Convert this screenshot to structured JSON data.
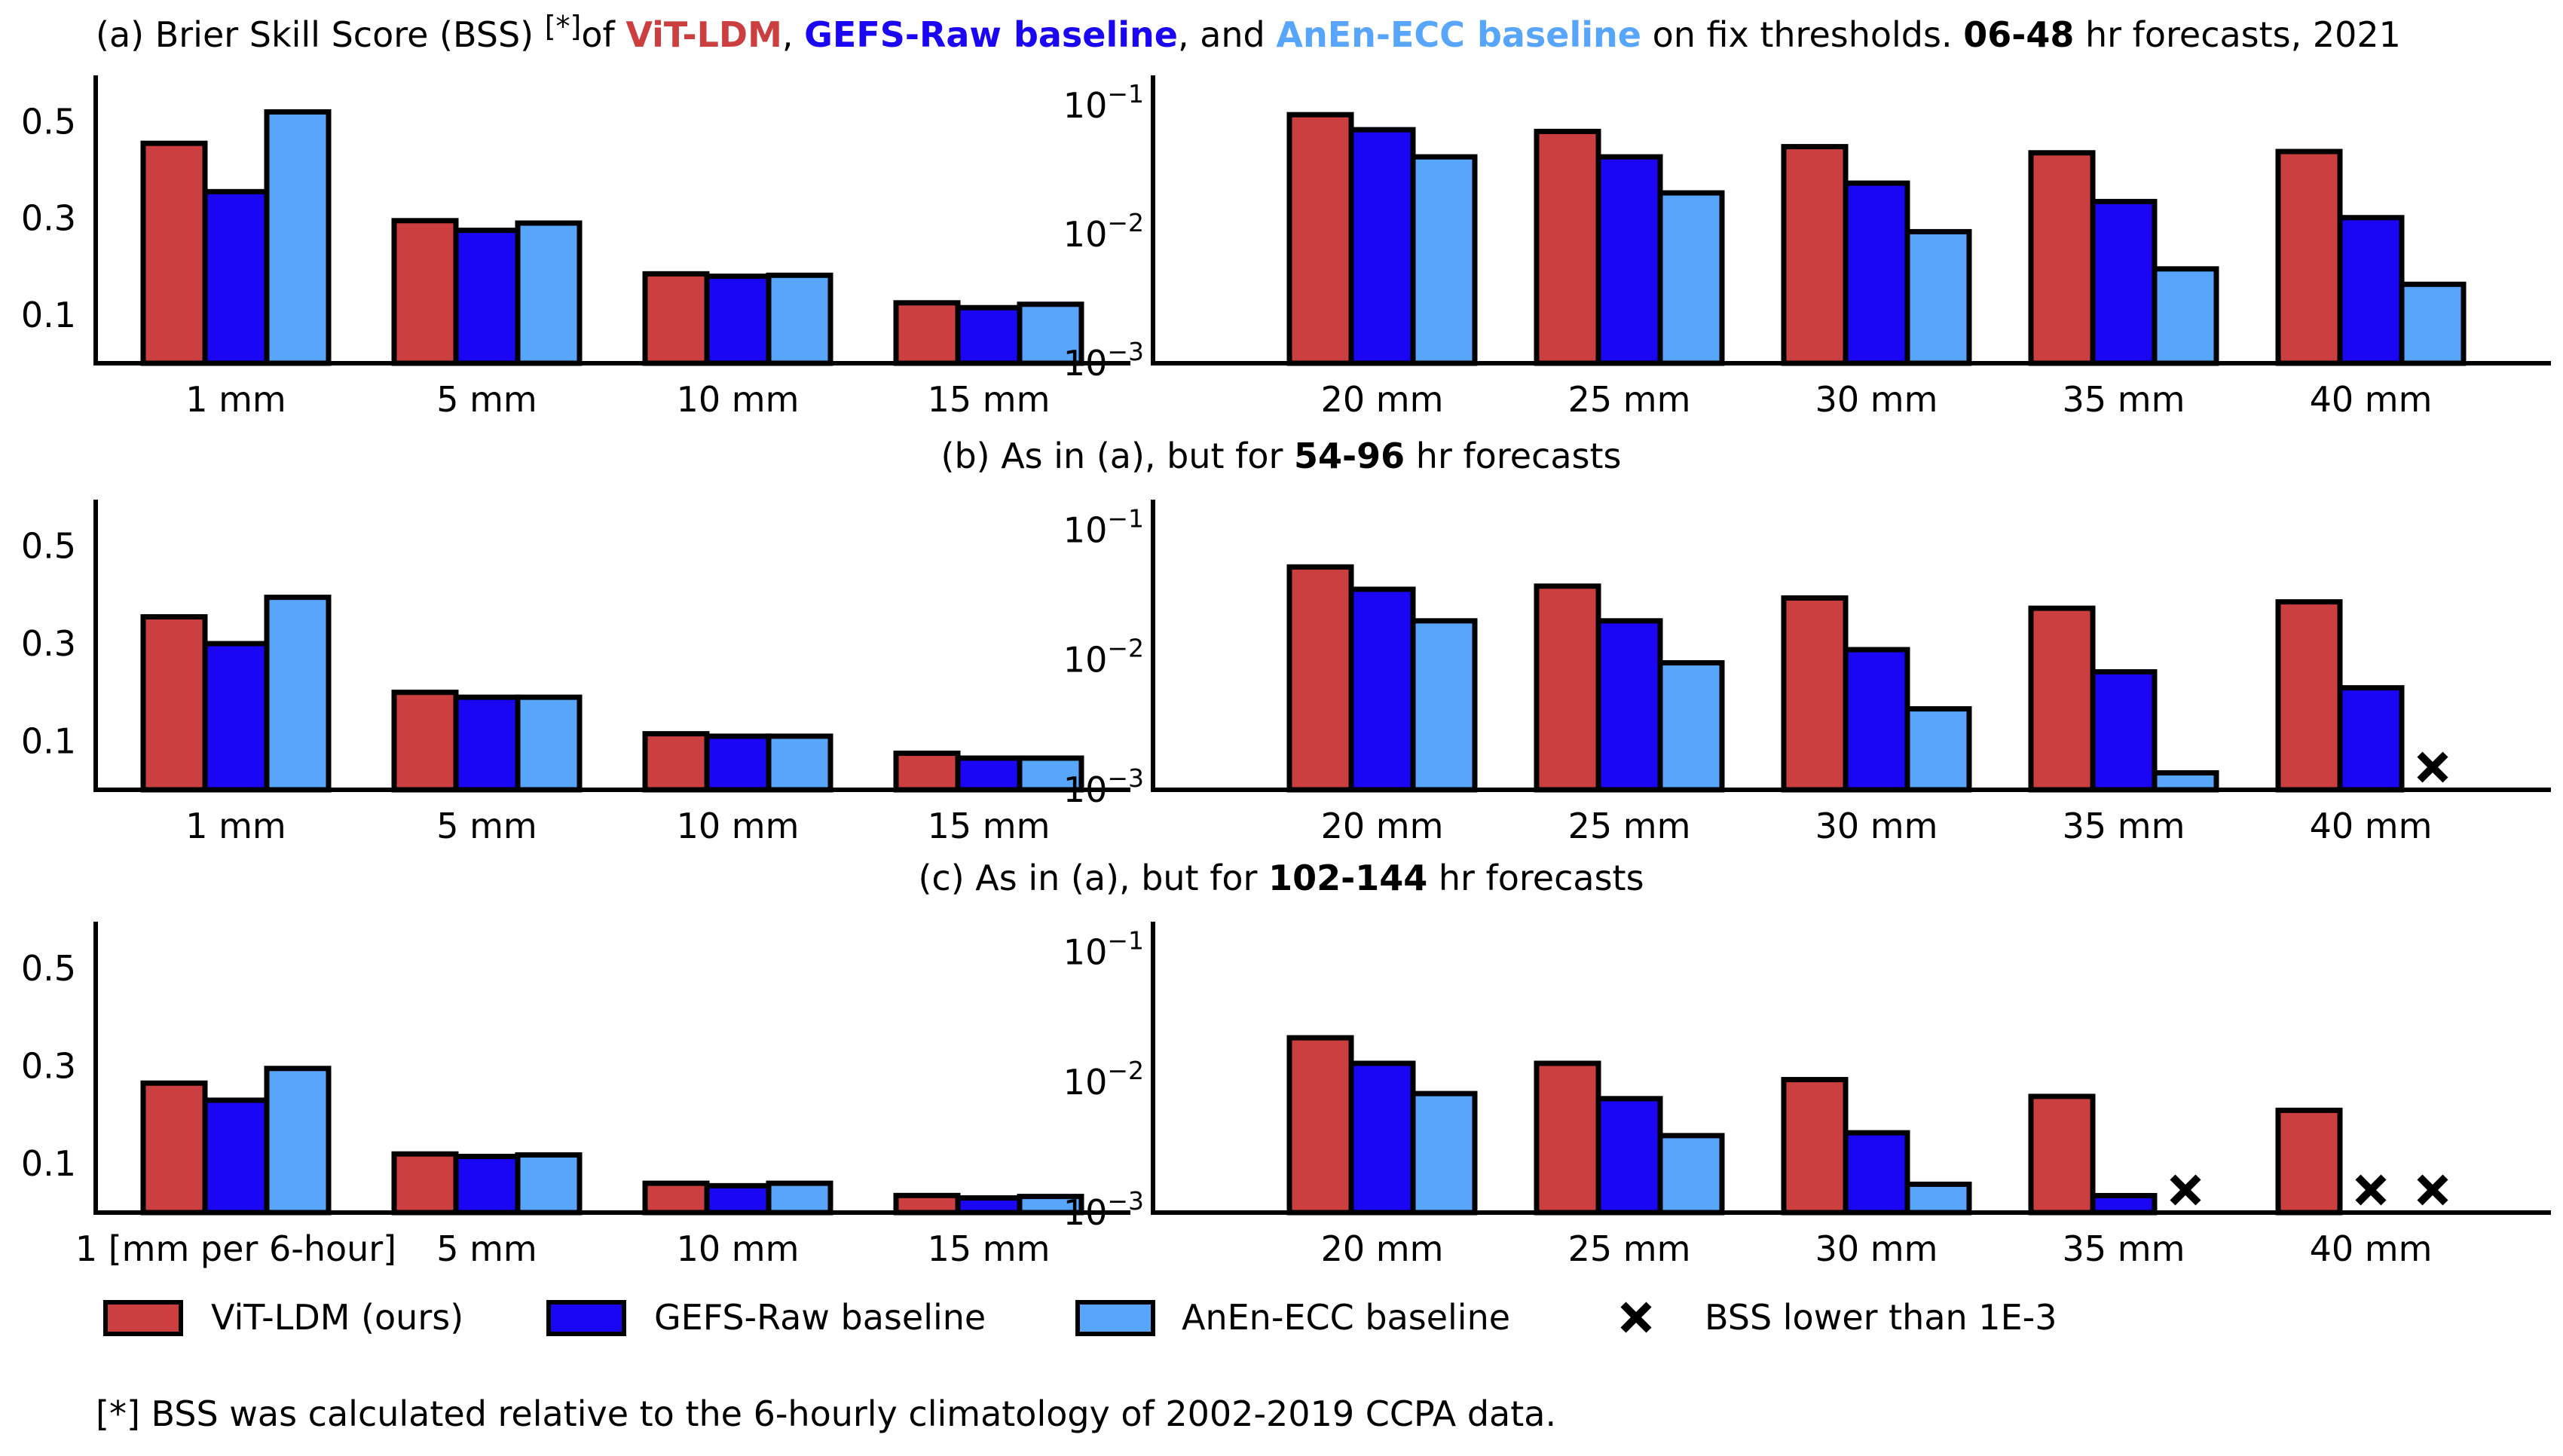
{
  "colors": {
    "vit": "#cc3f40",
    "gefs": "#1a06f2",
    "anen": "#58a6fb"
  },
  "titles": {
    "a": {
      "prefix": "(a) Brier Skill Score (BSS) ",
      "footnote_mark": "[*]",
      "of": "of ",
      "vit": "ViT-LDM",
      "comma": ", ",
      "gefs": "GEFS-Raw baseline",
      "and": ", and ",
      "anen": "AnEn-ECC baseline",
      "mid": " on fix thresholds. ",
      "lead": "06-48",
      "suffix": " hr forecasts, 2021"
    },
    "b": {
      "prefix": "(b) As in (a), but for ",
      "lead": "54-96",
      "suffix": " hr forecasts"
    },
    "c": {
      "prefix": "(c) As in (a), but for ",
      "lead": "102-144",
      "suffix": " hr forecasts"
    }
  },
  "legend": {
    "vit": "ViT-LDM (ours)",
    "gefs": "GEFS-Raw baseline",
    "anen": "AnEn-ECC baseline",
    "cross": "BSS lower than 1E-3"
  },
  "footnote": "[*] BSS was calculated relative to the 6-hourly climatology of 2002-2019 CCPA data.",
  "chart_data": [
    {
      "panel": "a-left",
      "type": "bar",
      "categories": [
        "1 mm",
        "5 mm",
        "10 mm",
        "15 mm"
      ],
      "yscale": "linear",
      "ylim": [
        0,
        0.58
      ],
      "yticks": [
        "0.1",
        "0.3",
        "0.5"
      ],
      "series": [
        {
          "name": "ViT-LDM (ours)",
          "values": [
            0.455,
            0.295,
            0.185,
            0.125
          ]
        },
        {
          "name": "GEFS-Raw baseline",
          "values": [
            0.355,
            0.275,
            0.18,
            0.115
          ]
        },
        {
          "name": "AnEn-ECC baseline",
          "values": [
            0.52,
            0.29,
            0.182,
            0.122
          ]
        }
      ]
    },
    {
      "panel": "a-right",
      "type": "bar",
      "categories": [
        "20 mm",
        "25 mm",
        "30 mm",
        "35 mm",
        "40 mm"
      ],
      "yscale": "log",
      "ylim": [
        0.001,
        0.15
      ],
      "yticks": [
        "10^-3",
        "10^-2",
        "10^-1"
      ],
      "series": [
        {
          "name": "ViT-LDM (ours)",
          "values": [
            0.085,
            0.063,
            0.048,
            0.043,
            0.044
          ]
        },
        {
          "name": "GEFS-Raw baseline",
          "values": [
            0.065,
            0.04,
            0.025,
            0.018,
            0.0135
          ]
        },
        {
          "name": "AnEn-ECC baseline",
          "values": [
            0.04,
            0.021,
            0.0105,
            0.0054,
            0.0041
          ]
        }
      ]
    },
    {
      "panel": "b-left",
      "type": "bar",
      "categories": [
        "1 mm",
        "5 mm",
        "10 mm",
        "15 mm"
      ],
      "yscale": "linear",
      "ylim": [
        0,
        0.58
      ],
      "yticks": [
        "0.1",
        "0.3",
        "0.5"
      ],
      "series": [
        {
          "name": "ViT-LDM (ours)",
          "values": [
            0.355,
            0.2,
            0.115,
            0.075
          ]
        },
        {
          "name": "GEFS-Raw baseline",
          "values": [
            0.3,
            0.19,
            0.11,
            0.065
          ]
        },
        {
          "name": "AnEn-ECC baseline",
          "values": [
            0.395,
            0.19,
            0.11,
            0.065
          ]
        }
      ]
    },
    {
      "panel": "b-right",
      "type": "bar",
      "categories": [
        "20 mm",
        "25 mm",
        "30 mm",
        "35 mm",
        "40 mm"
      ],
      "yscale": "log",
      "ylim": [
        0.001,
        0.15
      ],
      "yticks": [
        "10^-3",
        "10^-2",
        "10^-1"
      ],
      "series": [
        {
          "name": "ViT-LDM (ours)",
          "values": [
            0.052,
            0.037,
            0.03,
            0.025,
            0.028
          ]
        },
        {
          "name": "GEFS-Raw baseline",
          "values": [
            0.035,
            0.02,
            0.012,
            0.0081,
            0.0061
          ]
        },
        {
          "name": "AnEn-ECC baseline",
          "values": [
            0.02,
            0.0095,
            0.0042,
            0.00135,
            null
          ]
        }
      ],
      "below_threshold": [
        "AnEn-ECC baseline @ 40 mm"
      ]
    },
    {
      "panel": "c-left",
      "type": "bar",
      "categories": [
        "1 [mm per 6-hour]",
        "5 mm",
        "10 mm",
        "15 mm"
      ],
      "yscale": "linear",
      "ylim": [
        0,
        0.58
      ],
      "yticks": [
        "0.1",
        "0.3",
        "0.5"
      ],
      "series": [
        {
          "name": "ViT-LDM (ours)",
          "values": [
            0.265,
            0.12,
            0.06,
            0.035
          ]
        },
        {
          "name": "GEFS-Raw baseline",
          "values": [
            0.23,
            0.115,
            0.055,
            0.03
          ]
        },
        {
          "name": "AnEn-ECC baseline",
          "values": [
            0.295,
            0.118,
            0.06,
            0.033
          ]
        }
      ]
    },
    {
      "panel": "c-right",
      "type": "bar",
      "categories": [
        "20 mm",
        "25 mm",
        "30 mm",
        "35 mm",
        "40 mm"
      ],
      "yscale": "log",
      "ylim": [
        0.001,
        0.15
      ],
      "yticks": [
        "10^-3",
        "10^-2",
        "10^-1"
      ],
      "series": [
        {
          "name": "ViT-LDM (ours)",
          "values": [
            0.022,
            0.014,
            0.0105,
            0.0078,
            0.0061
          ]
        },
        {
          "name": "GEFS-Raw baseline",
          "values": [
            0.014,
            0.0075,
            0.0041,
            0.00135,
            null
          ]
        },
        {
          "name": "AnEn-ECC baseline",
          "values": [
            0.0082,
            0.0039,
            0.00165,
            null,
            null
          ]
        }
      ],
      "below_threshold": [
        "GEFS-Raw baseline @ 40 mm",
        "AnEn-ECC baseline @ 35 mm",
        "AnEn-ECC baseline @ 40 mm"
      ]
    }
  ]
}
